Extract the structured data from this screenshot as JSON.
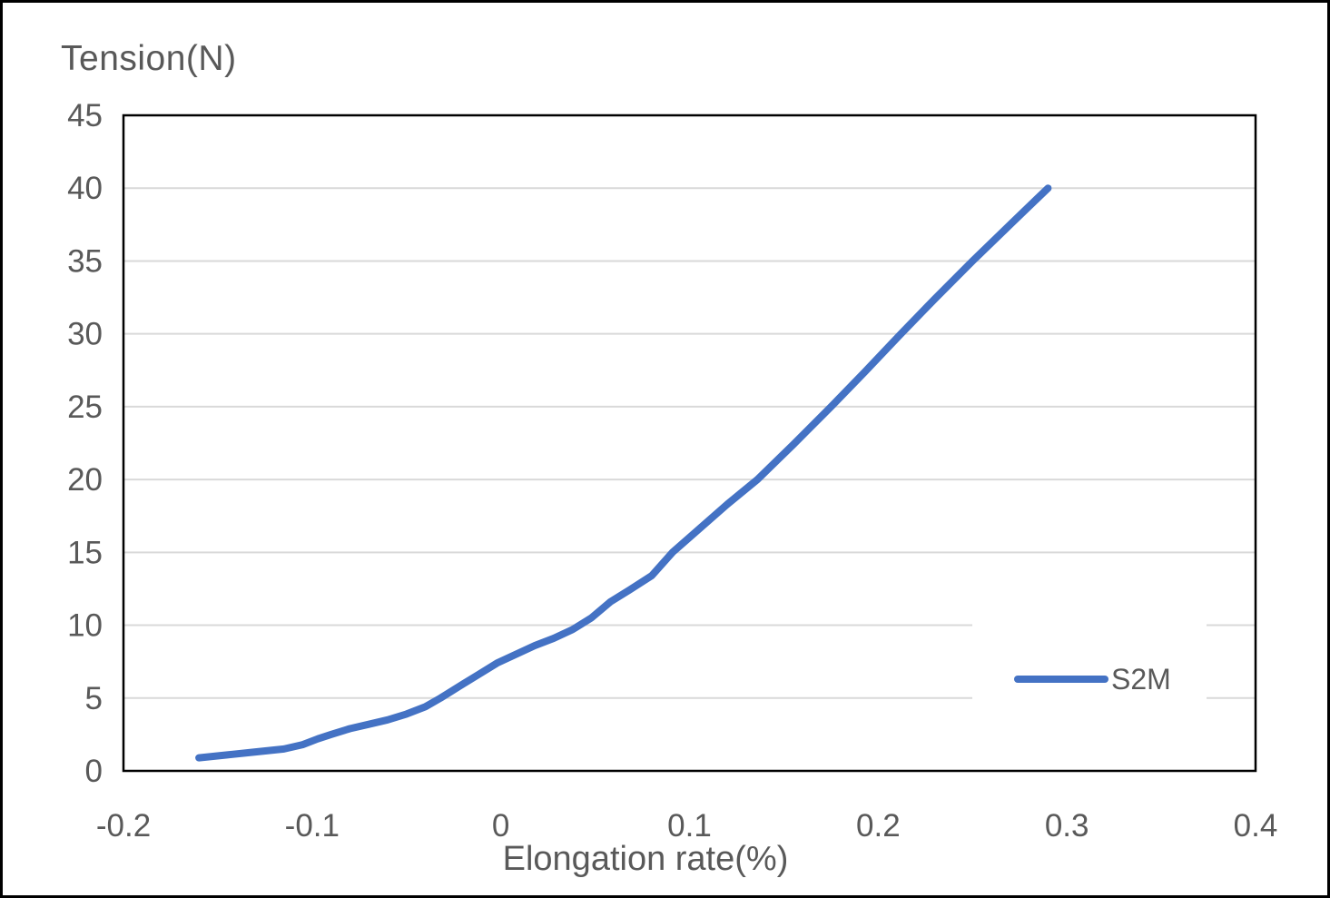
{
  "chart_data": {
    "type": "line",
    "title": "Tension(N)",
    "xlabel": "Elongation rate(%)",
    "ylabel": "",
    "xlim": [
      -0.2,
      0.4
    ],
    "ylim": [
      0,
      45
    ],
    "x_tick_values": [
      -0.2,
      -0.1,
      0,
      0.1,
      0.2,
      0.3,
      0.4
    ],
    "x_tick_labels": [
      "-0.2",
      "-0.1",
      "0",
      "0.1",
      "0.2",
      "0.3",
      "0.4"
    ],
    "y_tick_values": [
      0,
      5,
      10,
      15,
      20,
      25,
      30,
      35,
      40,
      45
    ],
    "y_tick_labels": [
      "0",
      "5",
      "10",
      "15",
      "20",
      "25",
      "30",
      "35",
      "40",
      "45"
    ],
    "grid": "horizontal-only",
    "legend": {
      "position": "inside-right",
      "entries": [
        {
          "label": "S2M",
          "color": "#4472C4"
        }
      ]
    },
    "series": [
      {
        "name": "S2M",
        "color": "#4472C4",
        "points": [
          [
            -0.16,
            0.9
          ],
          [
            -0.145,
            1.1
          ],
          [
            -0.13,
            1.3
          ],
          [
            -0.115,
            1.5
          ],
          [
            -0.105,
            1.8
          ],
          [
            -0.097,
            2.2
          ],
          [
            -0.09,
            2.5
          ],
          [
            -0.08,
            2.9
          ],
          [
            -0.07,
            3.2
          ],
          [
            -0.06,
            3.5
          ],
          [
            -0.05,
            3.9
          ],
          [
            -0.04,
            4.4
          ],
          [
            -0.032,
            5.0
          ],
          [
            -0.022,
            5.8
          ],
          [
            -0.012,
            6.6
          ],
          [
            -0.002,
            7.4
          ],
          [
            0.008,
            8.0
          ],
          [
            0.018,
            8.6
          ],
          [
            0.028,
            9.1
          ],
          [
            0.038,
            9.7
          ],
          [
            0.048,
            10.5
          ],
          [
            0.058,
            11.6
          ],
          [
            0.068,
            12.4
          ],
          [
            0.08,
            13.4
          ],
          [
            0.091,
            15.0
          ],
          [
            0.105,
            16.6
          ],
          [
            0.12,
            18.3
          ],
          [
            0.136,
            20.0
          ],
          [
            0.155,
            22.4
          ],
          [
            0.175,
            25.0
          ],
          [
            0.193,
            27.4
          ],
          [
            0.212,
            30.0
          ],
          [
            0.23,
            32.4
          ],
          [
            0.25,
            35.0
          ],
          [
            0.27,
            37.5
          ],
          [
            0.29,
            40.0
          ]
        ]
      }
    ],
    "colors": {
      "line": "#4472C4",
      "gridline": "#D9D9D9",
      "tick_label": "#595959",
      "axis_title": "#595959",
      "plot_border": "#000000",
      "figure_border": "#000000",
      "background": "#FFFFFF"
    }
  }
}
